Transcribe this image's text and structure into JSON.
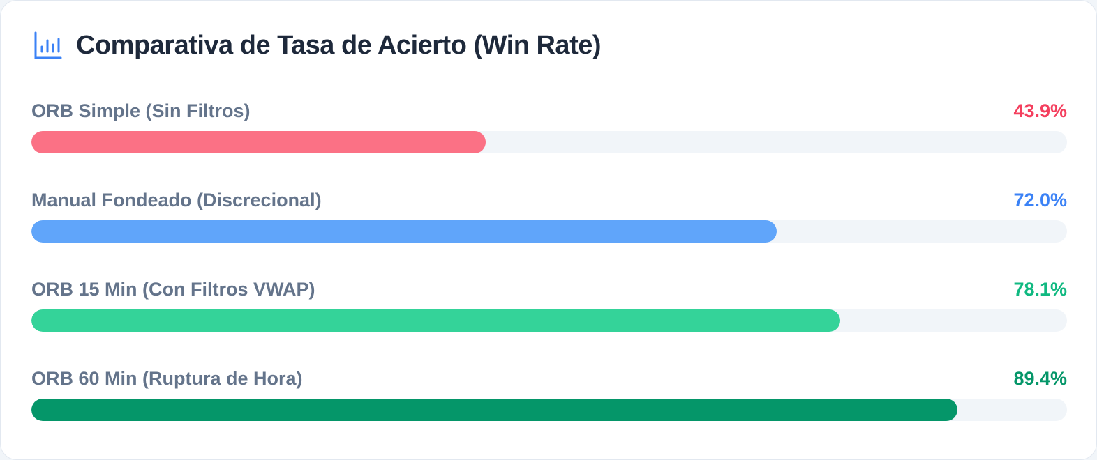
{
  "header": {
    "title": "Comparativa de Tasa de Acierto (Win Rate)",
    "icon": "bar-chart-icon"
  },
  "colors": {
    "title": "#1e293b",
    "label": "#64748b",
    "track": "#f1f5f9",
    "icon": "#3b82f6"
  },
  "chart_data": {
    "type": "bar",
    "orientation": "horizontal",
    "title": "Comparativa de Tasa de Acierto (Win Rate)",
    "xlim": [
      0,
      100
    ],
    "unit": "%",
    "grid": false,
    "categories": [
      "ORB Simple (Sin Filtros)",
      "Manual Fondeado (Discrecional)",
      "ORB 15 Min (Con Filtros VWAP)",
      "ORB 60 Min (Ruptura de Hora)"
    ],
    "values": [
      43.9,
      72.0,
      78.1,
      89.4
    ],
    "value_labels": [
      "43.9%",
      "72.0%",
      "78.1%",
      "89.4%"
    ],
    "bar_colors": [
      "#fb7185",
      "#60a5fa",
      "#34d399",
      "#059669"
    ],
    "value_label_colors": [
      "#f43f5e",
      "#3b82f6",
      "#10b981",
      "#059669"
    ]
  }
}
